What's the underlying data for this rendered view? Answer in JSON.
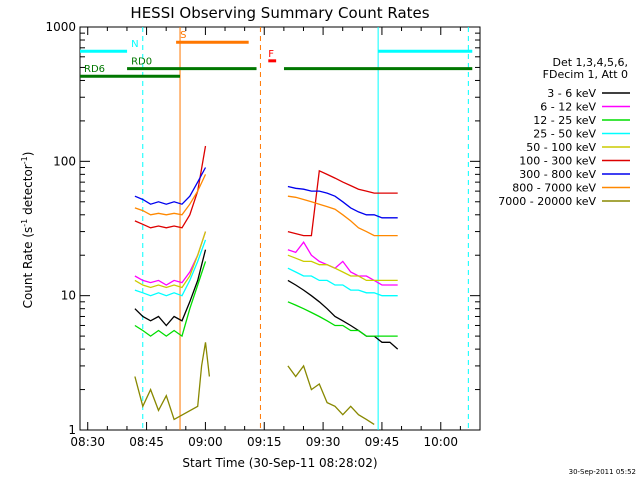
{
  "chart_data": {
    "type": "line",
    "title": "HESSI Observing Summary Count Rates",
    "xlabel": "Start Time (30-Sep-11 08:28:02)",
    "ylabel_main": "Count Rate (s",
    "ylabel_sup1": "-1",
    "ylabel_mid": " detector",
    "ylabel_sup2": "-1",
    "ylabel_end": ")",
    "yscale": "log",
    "ylim": [
      1,
      1000
    ],
    "xlim": [
      "08:28:02",
      "10:10:00"
    ],
    "x_ticks": [
      "08:30",
      "08:45",
      "09:00",
      "09:15",
      "09:30",
      "09:45",
      "10:00"
    ],
    "x_tick_minutes": [
      1.97,
      16.97,
      31.97,
      46.97,
      61.97,
      76.97,
      91.97
    ],
    "x_end_minutes": 101.97,
    "y_ticks": [
      "1",
      "10",
      "100",
      "1000"
    ],
    "y_tick_values": [
      1,
      10,
      100,
      1000
    ],
    "legend": {
      "placement": "right",
      "header1": "Det 1,3,4,5,6,",
      "header2": "FDecim 1, Att 0",
      "entries": [
        {
          "label": "3 - 6 keV",
          "color": "#000000"
        },
        {
          "label": "6 - 12 keV",
          "color": "#ff00ff"
        },
        {
          "label": "12 - 25 keV",
          "color": "#00dd00"
        },
        {
          "label": "25 - 50 keV",
          "color": "#00ffff"
        },
        {
          "label": "50 - 100 keV",
          "color": "#cccc00"
        },
        {
          "label": "100 - 300 keV",
          "color": "#dd0000"
        },
        {
          "label": "300 - 800 keV",
          "color": "#0000ee"
        },
        {
          "label": "800 - 7000 keV",
          "color": "#ff8800"
        },
        {
          "label": "7000 - 20000 keV",
          "color": "#888800"
        }
      ]
    },
    "series": [
      {
        "name": "3 - 6 keV",
        "color": "#000000",
        "segments": [
          {
            "x": [
              14,
              16,
              18,
              20,
              22,
              24,
              26,
              28,
              30,
              32
            ],
            "y": [
              8,
              7,
              6.5,
              7,
              6,
              7,
              6.5,
              9,
              13,
              22
            ]
          },
          {
            "x": [
              53,
              55,
              57,
              59,
              61,
              63,
              65,
              67,
              69,
              71,
              73,
              75,
              77,
              79,
              81
            ],
            "y": [
              13,
              12,
              11,
              10,
              9,
              8,
              7,
              6.5,
              6,
              5.5,
              5,
              5,
              4.5,
              4.5,
              4
            ]
          }
        ]
      },
      {
        "name": "6 - 12 keV",
        "color": "#ff00ff",
        "segments": [
          {
            "x": [
              14,
              16,
              18,
              20,
              22,
              24,
              26,
              28,
              30,
              32
            ],
            "y": [
              14,
              13,
              12.5,
              13,
              12,
              13,
              12.5,
              15,
              20,
              30
            ]
          },
          {
            "x": [
              53,
              55,
              57,
              59,
              61,
              63,
              65,
              67,
              69,
              71,
              73,
              75,
              77,
              79,
              81
            ],
            "y": [
              22,
              21,
              25,
              20,
              18,
              17,
              16,
              18,
              15,
              14,
              14,
              13,
              12,
              12,
              12
            ]
          }
        ]
      },
      {
        "name": "12 - 25 keV",
        "color": "#00dd00",
        "segments": [
          {
            "x": [
              14,
              16,
              18,
              20,
              22,
              24,
              26,
              28,
              30,
              32
            ],
            "y": [
              6,
              5.5,
              5,
              5.5,
              5,
              5.5,
              5,
              8,
              12,
              18
            ]
          },
          {
            "x": [
              53,
              55,
              57,
              59,
              61,
              63,
              65,
              67,
              69,
              71,
              73,
              75,
              77,
              79,
              81
            ],
            "y": [
              9,
              8.5,
              8,
              7.5,
              7,
              6.5,
              6,
              6,
              5.5,
              5.5,
              5,
              5,
              5,
              5,
              5
            ]
          }
        ]
      },
      {
        "name": "25 - 50 keV",
        "color": "#00ffff",
        "segments": [
          {
            "x": [
              14,
              16,
              18,
              20,
              22,
              24,
              26,
              28,
              30,
              32
            ],
            "y": [
              11,
              10.5,
              10,
              10.5,
              10,
              10.5,
              10,
              13,
              18,
              26
            ]
          },
          {
            "x": [
              53,
              55,
              57,
              59,
              61,
              63,
              65,
              67,
              69,
              71,
              73,
              75,
              77,
              79,
              81
            ],
            "y": [
              16,
              15,
              14,
              14,
              13,
              13,
              12,
              12,
              11,
              11,
              10.5,
              10.5,
              10,
              10,
              10
            ]
          }
        ]
      },
      {
        "name": "50 - 100 keV",
        "color": "#cccc00",
        "segments": [
          {
            "x": [
              14,
              16,
              18,
              20,
              22,
              24,
              26,
              28,
              30,
              32
            ],
            "y": [
              13,
              12,
              11.5,
              12,
              11.5,
              12,
              11.5,
              14,
              20,
              30
            ]
          },
          {
            "x": [
              53,
              55,
              57,
              59,
              61,
              63,
              65,
              67,
              69,
              71,
              73,
              75,
              77,
              79,
              81
            ],
            "y": [
              20,
              19,
              18,
              18,
              17,
              17,
              16,
              15,
              14,
              14,
              13,
              13,
              13,
              13,
              13
            ]
          }
        ]
      },
      {
        "name": "100 - 300 keV",
        "color": "#dd0000",
        "segments": [
          {
            "x": [
              14,
              16,
              18,
              20,
              22,
              24,
              26,
              28,
              30,
              32
            ],
            "y": [
              36,
              34,
              32,
              33,
              32,
              33,
              32,
              40,
              60,
              130
            ]
          },
          {
            "x": [
              53,
              55,
              57,
              59,
              61,
              63,
              65,
              67,
              69,
              71,
              73,
              75,
              77,
              79,
              81
            ],
            "y": [
              30,
              29,
              28,
              28,
              85,
              80,
              75,
              70,
              66,
              62,
              60,
              58,
              58,
              58,
              58
            ]
          }
        ]
      },
      {
        "name": "300 - 800 keV",
        "color": "#0000ee",
        "segments": [
          {
            "x": [
              14,
              16,
              18,
              20,
              22,
              24,
              26,
              28,
              30,
              32
            ],
            "y": [
              55,
              52,
              48,
              50,
              48,
              50,
              48,
              55,
              70,
              90
            ]
          },
          {
            "x": [
              53,
              55,
              57,
              59,
              61,
              63,
              65,
              67,
              69,
              71,
              73,
              75,
              77,
              79,
              81
            ],
            "y": [
              65,
              63,
              62,
              60,
              60,
              58,
              55,
              50,
              45,
              42,
              40,
              40,
              38,
              38,
              38
            ]
          }
        ]
      },
      {
        "name": "800 - 7000 keV",
        "color": "#ff8800",
        "segments": [
          {
            "x": [
              14,
              16,
              18,
              20,
              22,
              24,
              26,
              28,
              30,
              32
            ],
            "y": [
              45,
              43,
              40,
              41,
              40,
              41,
              40,
              48,
              60,
              80
            ]
          },
          {
            "x": [
              53,
              55,
              57,
              59,
              61,
              63,
              65,
              67,
              69,
              71,
              73,
              75,
              77,
              79,
              81
            ],
            "y": [
              55,
              54,
              52,
              50,
              48,
              46,
              44,
              40,
              36,
              32,
              30,
              28,
              28,
              28,
              28
            ]
          }
        ]
      },
      {
        "name": "7000 - 20000 keV",
        "color": "#888800",
        "segments": [
          {
            "x": [
              14,
              16,
              18,
              20,
              22,
              24,
              30,
              31,
              32,
              33
            ],
            "y": [
              2.5,
              1.5,
              2.0,
              1.4,
              1.8,
              1.2,
              1.5,
              3,
              4.5,
              2.5
            ]
          },
          {
            "x": [
              53,
              55,
              57,
              59,
              61,
              63,
              65,
              67,
              69,
              71,
              73,
              75
            ],
            "y": [
              3,
              2.5,
              3,
              2,
              2.2,
              1.6,
              1.5,
              1.3,
              1.5,
              1.3,
              1.2,
              1.1
            ]
          }
        ]
      }
    ],
    "state_bars": [
      {
        "label": "N",
        "color": "#00ffff",
        "segments": [
          [
            -2,
            12
          ],
          [
            76,
            100
          ]
        ],
        "level": 660
      },
      {
        "label": "RD0",
        "color": "#007700",
        "segments": [
          [
            12,
            45
          ],
          [
            52,
            100
          ]
        ],
        "level": 490
      },
      {
        "label": "RD6",
        "color": "#007700",
        "segments": [
          [
            -2,
            25.5
          ]
        ],
        "level": 430
      },
      {
        "label": "S",
        "color": "#ff7700",
        "segments": [
          [
            24.5,
            43
          ]
        ],
        "level": 770
      },
      {
        "label": "F",
        "color": "#ff0000",
        "segments": [
          [
            48,
            50
          ]
        ],
        "level": 560
      }
    ],
    "vertical_lines": [
      {
        "x": 16,
        "color": "#00ffff",
        "style": "dashed"
      },
      {
        "x": 25.5,
        "color": "#ff7700",
        "style": "solid"
      },
      {
        "x": 46,
        "color": "#ff7700",
        "style": "dashed"
      },
      {
        "x": 76,
        "color": "#00ffff",
        "style": "solid"
      },
      {
        "x": 99,
        "color": "#00ffff",
        "style": "dashed"
      }
    ]
  },
  "footer_timestamp": "30-Sep-2011 05:52"
}
